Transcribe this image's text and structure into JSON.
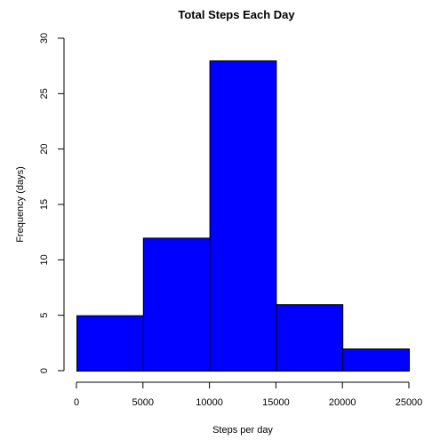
{
  "chart_data": {
    "type": "bar",
    "title": "Total Steps Each Day",
    "xlabel": "Steps per day",
    "ylabel": "Frequency (days)",
    "bins": [
      {
        "start": 0,
        "end": 5000,
        "count": 5
      },
      {
        "start": 5000,
        "end": 10000,
        "count": 12
      },
      {
        "start": 10000,
        "end": 15000,
        "count": 28
      },
      {
        "start": 15000,
        "end": 20000,
        "count": 6
      },
      {
        "start": 20000,
        "end": 25000,
        "count": 2
      }
    ],
    "xticks": [
      0,
      5000,
      10000,
      15000,
      20000,
      25000
    ],
    "yticks": [
      0,
      5,
      10,
      15,
      20,
      25,
      30
    ],
    "xlim": [
      0,
      25000
    ],
    "ylim": [
      0,
      30
    ],
    "bar_color": "#0000ff",
    "bar_edge_color": "#000000",
    "grid": false,
    "legend": "none"
  }
}
